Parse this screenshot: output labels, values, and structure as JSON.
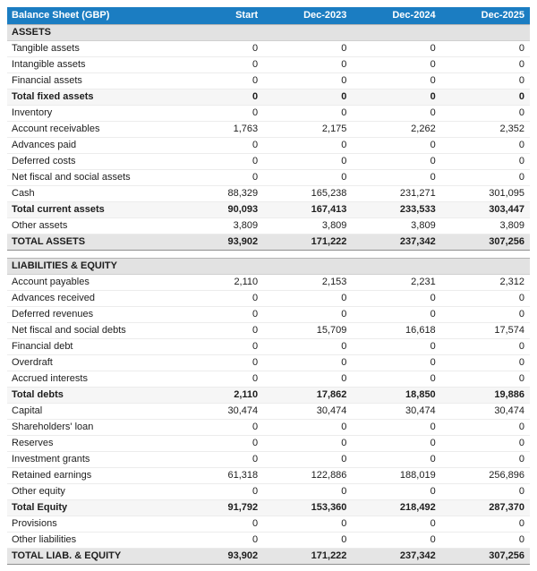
{
  "colors": {
    "header_bg": "#1b7dc2",
    "header_text": "#ffffff",
    "section_bg": "#e2e2e2",
    "subtotal_bg": "#f6f6f6",
    "total_bg": "#e5e5e5",
    "dark_border": "#555555",
    "light_border": "#ececec",
    "body_text": "#1d1d1d"
  },
  "table": {
    "title": "Balance Sheet (GBP)",
    "columns": [
      "Start",
      "Dec-2023",
      "Dec-2024",
      "Dec-2025"
    ],
    "sections": [
      {
        "header": "ASSETS",
        "rows": [
          {
            "label": "Tangible assets",
            "values": [
              "0",
              "0",
              "0",
              "0"
            ],
            "style": "normal"
          },
          {
            "label": "Intangible assets",
            "values": [
              "0",
              "0",
              "0",
              "0"
            ],
            "style": "normal"
          },
          {
            "label": "Financial assets",
            "values": [
              "0",
              "0",
              "0",
              "0"
            ],
            "style": "normal"
          },
          {
            "label": "Total fixed assets",
            "values": [
              "0",
              "0",
              "0",
              "0"
            ],
            "style": "subtotal"
          },
          {
            "label": "Inventory",
            "values": [
              "0",
              "0",
              "0",
              "0"
            ],
            "style": "normal"
          },
          {
            "label": "Account receivables",
            "values": [
              "1,763",
              "2,175",
              "2,262",
              "2,352"
            ],
            "style": "normal"
          },
          {
            "label": "Advances paid",
            "values": [
              "0",
              "0",
              "0",
              "0"
            ],
            "style": "normal"
          },
          {
            "label": "Deferred costs",
            "values": [
              "0",
              "0",
              "0",
              "0"
            ],
            "style": "normal"
          },
          {
            "label": "Net fiscal and social assets",
            "values": [
              "0",
              "0",
              "0",
              "0"
            ],
            "style": "normal"
          },
          {
            "label": "Cash",
            "values": [
              "88,329",
              "165,238",
              "231,271",
              "301,095"
            ],
            "style": "normal"
          },
          {
            "label": "Total current assets",
            "values": [
              "90,093",
              "167,413",
              "233,533",
              "303,447"
            ],
            "style": "subtotal"
          },
          {
            "label": "Other assets",
            "values": [
              "3,809",
              "3,809",
              "3,809",
              "3,809"
            ],
            "style": "normal"
          },
          {
            "label": "TOTAL ASSETS",
            "values": [
              "93,902",
              "171,222",
              "237,342",
              "307,256"
            ],
            "style": "total"
          }
        ]
      },
      {
        "header": "LIABILITIES & EQUITY",
        "rows": [
          {
            "label": "Account payables",
            "values": [
              "2,110",
              "2,153",
              "2,231",
              "2,312"
            ],
            "style": "normal"
          },
          {
            "label": "Advances received",
            "values": [
              "0",
              "0",
              "0",
              "0"
            ],
            "style": "normal"
          },
          {
            "label": "Deferred revenues",
            "values": [
              "0",
              "0",
              "0",
              "0"
            ],
            "style": "normal"
          },
          {
            "label": "Net fiscal and social debts",
            "values": [
              "0",
              "15,709",
              "16,618",
              "17,574"
            ],
            "style": "normal"
          },
          {
            "label": "Financial debt",
            "values": [
              "0",
              "0",
              "0",
              "0"
            ],
            "style": "normal"
          },
          {
            "label": "Overdraft",
            "values": [
              "0",
              "0",
              "0",
              "0"
            ],
            "style": "normal"
          },
          {
            "label": "Accrued interests",
            "values": [
              "0",
              "0",
              "0",
              "0"
            ],
            "style": "normal"
          },
          {
            "label": "Total debts",
            "values": [
              "2,110",
              "17,862",
              "18,850",
              "19,886"
            ],
            "style": "subtotal"
          },
          {
            "label": "Capital",
            "values": [
              "30,474",
              "30,474",
              "30,474",
              "30,474"
            ],
            "style": "normal"
          },
          {
            "label": "Shareholders' loan",
            "values": [
              "0",
              "0",
              "0",
              "0"
            ],
            "style": "normal"
          },
          {
            "label": "Reserves",
            "values": [
              "0",
              "0",
              "0",
              "0"
            ],
            "style": "normal"
          },
          {
            "label": "Investment grants",
            "values": [
              "0",
              "0",
              "0",
              "0"
            ],
            "style": "normal"
          },
          {
            "label": "Retained earnings",
            "values": [
              "61,318",
              "122,886",
              "188,019",
              "256,896"
            ],
            "style": "normal"
          },
          {
            "label": "Other equity",
            "values": [
              "0",
              "0",
              "0",
              "0"
            ],
            "style": "normal"
          },
          {
            "label": "Total Equity",
            "values": [
              "91,792",
              "153,360",
              "218,492",
              "287,370"
            ],
            "style": "subtotal"
          },
          {
            "label": "Provisions",
            "values": [
              "0",
              "0",
              "0",
              "0"
            ],
            "style": "normal"
          },
          {
            "label": "Other liabilities",
            "values": [
              "0",
              "0",
              "0",
              "0"
            ],
            "style": "normal"
          },
          {
            "label": "TOTAL LIAB. & EQUITY",
            "values": [
              "93,902",
              "171,222",
              "237,342",
              "307,256"
            ],
            "style": "total"
          }
        ]
      }
    ]
  }
}
